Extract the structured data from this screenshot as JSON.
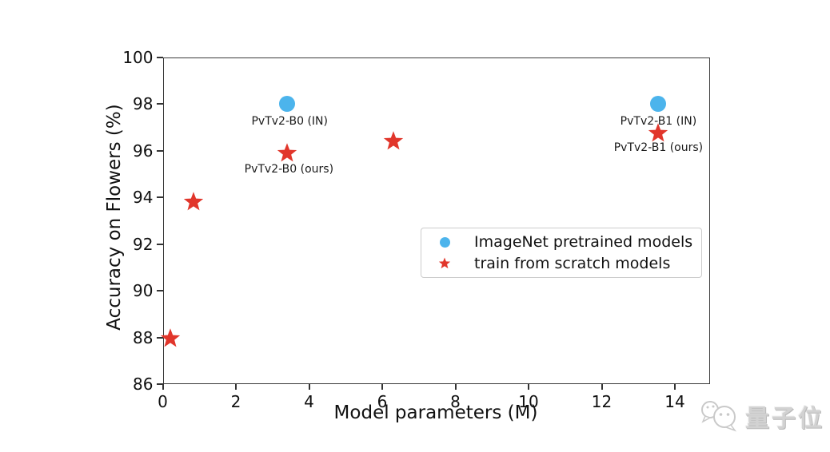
{
  "chart_data": {
    "type": "scatter",
    "title": "",
    "xlabel": "Model parameters (M)",
    "ylabel": "Accuracy on Flowers (%)",
    "xlim": [
      0,
      14.95
    ],
    "ylim": [
      86,
      100
    ],
    "xticks": [
      0,
      2,
      4,
      6,
      8,
      10,
      12,
      14
    ],
    "yticks": [
      86,
      88,
      90,
      92,
      94,
      96,
      98,
      100
    ],
    "grid": false,
    "legend_position": "middle-right",
    "series": [
      {
        "name": "ImageNet pretrained models",
        "marker": "circle",
        "color": "#4cb4ec",
        "points": [
          [
            3.4,
            98.0
          ],
          [
            13.55,
            98.0
          ]
        ]
      },
      {
        "name": "train from scratch models",
        "marker": "star",
        "color": "#e1362b",
        "points": [
          [
            0.2,
            87.95
          ],
          [
            0.85,
            93.8
          ],
          [
            3.4,
            95.9
          ],
          [
            6.3,
            96.4
          ],
          [
            13.55,
            96.75
          ]
        ]
      }
    ],
    "annotations": [
      {
        "text": "PvTv2-B0 (IN)",
        "x": 3.47,
        "y": 97.2
      },
      {
        "text": "PvTv2-B0 (ours)",
        "x": 3.45,
        "y": 95.15
      },
      {
        "text": "PvTv2-B1 (IN)",
        "x": 13.55,
        "y": 97.2
      },
      {
        "text": "PvTv2-B1 (ours)",
        "x": 13.55,
        "y": 96.05
      }
    ]
  },
  "watermark": {
    "text": "量子位",
    "logo": "chat-bubbles"
  },
  "style": {
    "spine_color": "#3a3a3a",
    "tick_color": "#333333",
    "text_color": "#111111",
    "watermark_color": "#c9c9c9",
    "background": "#ffffff"
  }
}
